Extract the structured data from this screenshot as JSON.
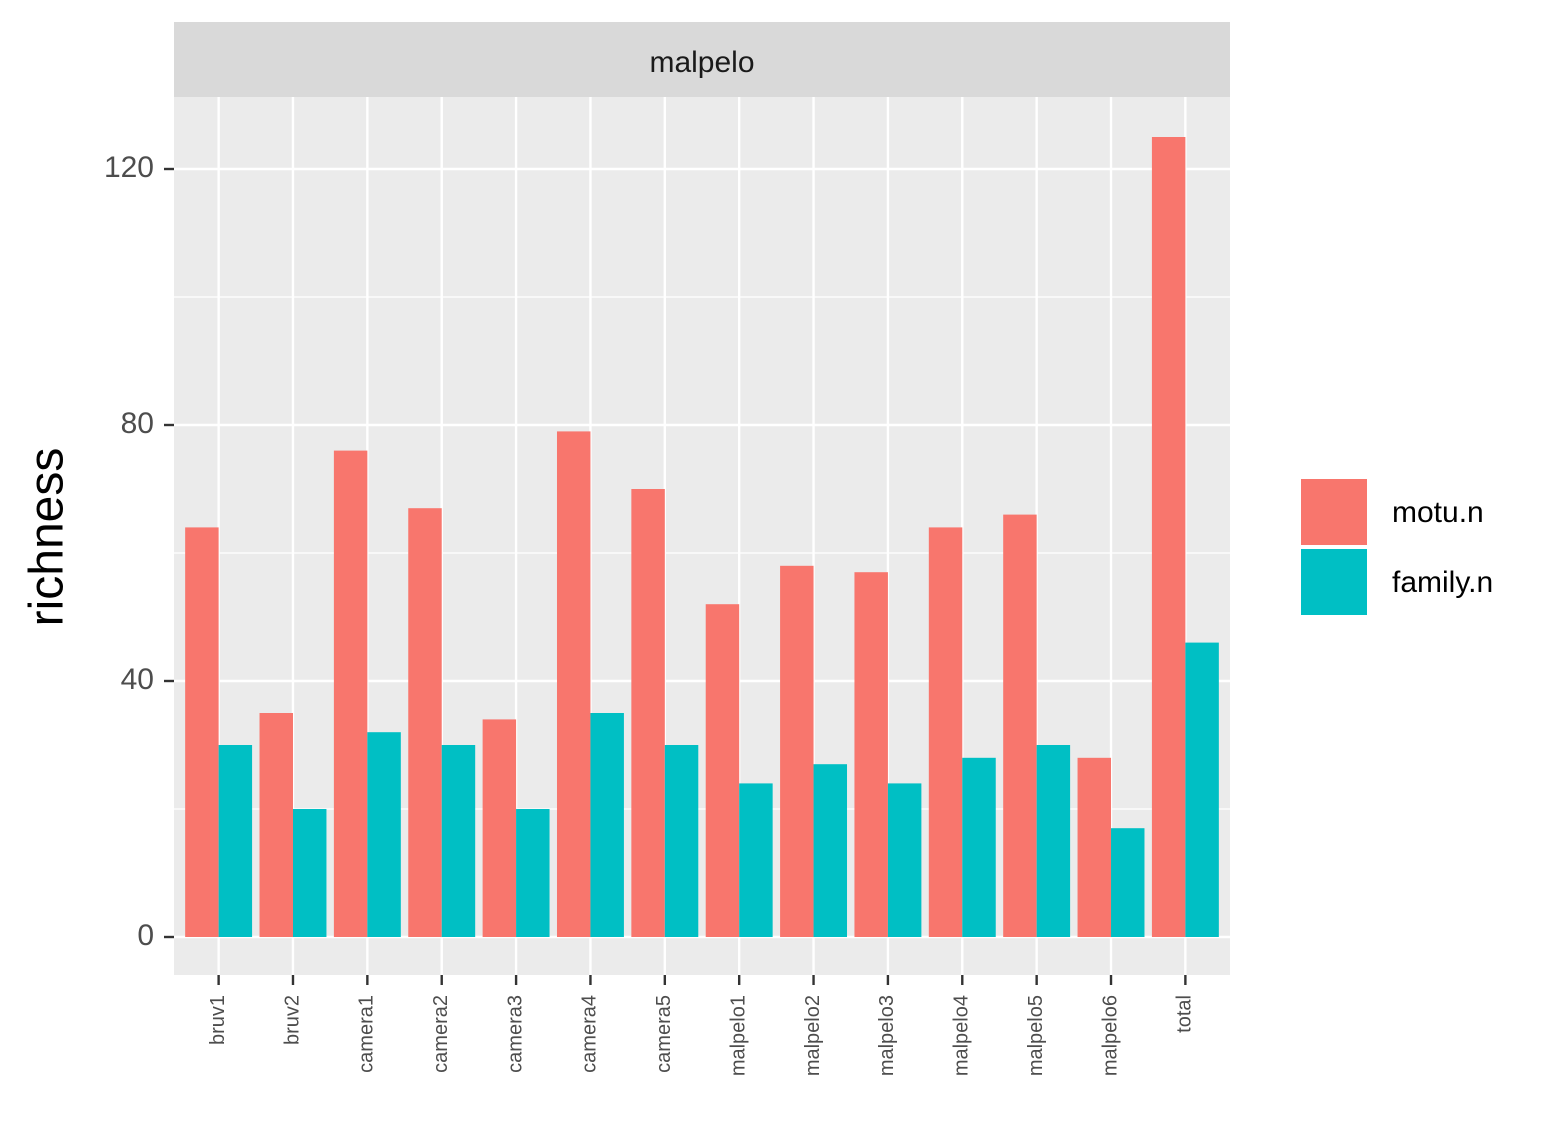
{
  "chart_data": {
    "type": "bar",
    "facet": "malpelo",
    "categories": [
      "bruv1",
      "bruv2",
      "camera1",
      "camera2",
      "camera3",
      "camera4",
      "camera5",
      "malpelo1",
      "malpelo2",
      "malpelo3",
      "malpelo4",
      "malpelo5",
      "malpelo6",
      "total"
    ],
    "series": [
      {
        "name": "motu.n",
        "color": "#F8766D",
        "values": [
          64,
          35,
          76,
          67,
          34,
          79,
          70,
          52,
          58,
          57,
          64,
          66,
          28,
          125
        ]
      },
      {
        "name": "family.n",
        "color": "#00BFC4",
        "values": [
          30,
          20,
          32,
          30,
          20,
          35,
          30,
          24,
          27,
          24,
          28,
          30,
          17,
          46
        ]
      }
    ],
    "xlabel": "",
    "ylabel": "richness",
    "ylim": [
      -6,
      132
    ],
    "yticks": [
      0,
      40,
      80,
      120
    ],
    "grid": true,
    "legend_position": "right"
  }
}
